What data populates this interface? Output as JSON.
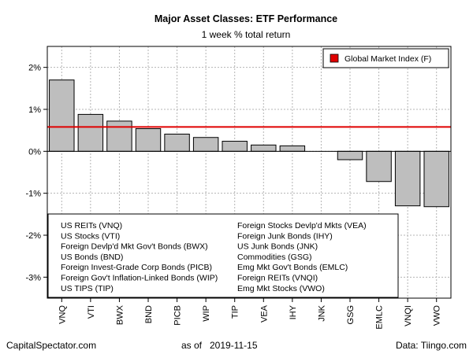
{
  "chart_data": {
    "type": "bar",
    "title": "Major Asset Classes: ETF Performance",
    "subtitle": "1 week % total return",
    "categories": [
      "VNQ",
      "VTI",
      "BWX",
      "BND",
      "PICB",
      "WIP",
      "TIP",
      "VEA",
      "IHY",
      "JNK",
      "GSG",
      "EMLC",
      "VNQI",
      "VWO"
    ],
    "values": [
      1.7,
      0.88,
      0.72,
      0.54,
      0.41,
      0.33,
      0.24,
      0.15,
      0.13,
      0.0,
      -0.2,
      -0.72,
      -1.3,
      -1.32
    ],
    "ylim": [
      -3.5,
      2.5
    ],
    "yticks": [
      2,
      1,
      0,
      -1,
      -2,
      -3
    ],
    "ytick_labels": [
      "2%",
      "1%",
      "0%",
      "-1%",
      "-2%",
      "-3%"
    ],
    "reference_line": {
      "value": 0.58,
      "label": "Global Market Index (F)",
      "color": "#e00000"
    },
    "bar_color": "#bebebe",
    "grid": true,
    "legend_placement": "top-right",
    "key_left": [
      "US REITs (VNQ)",
      "US Stocks (VTI)",
      "Foreign Devlp'd Mkt Gov't Bonds (BWX)",
      "US Bonds (BND)",
      "Foreign Invest-Grade Corp Bonds (PICB)",
      "Foreign Gov't Inflation-Linked Bonds (WIP)",
      "US TIPS (TIP)"
    ],
    "key_right": [
      "Foreign Stocks Devlp'd Mkts (VEA)",
      "Foreign Junk Bonds (IHY)",
      "US Junk Bonds (JNK)",
      "Commodities (GSG)",
      "Emg Mkt Gov't Bonds (EMLC)",
      "Foreign REITs (VNQI)",
      "Emg Mkt Stocks (VWO)"
    ]
  },
  "footer": {
    "source_left": "CapitalSpectator.com",
    "date_prefix": "as of",
    "date": "2019-11-15",
    "source_right": "Data: Tiingo.com"
  }
}
